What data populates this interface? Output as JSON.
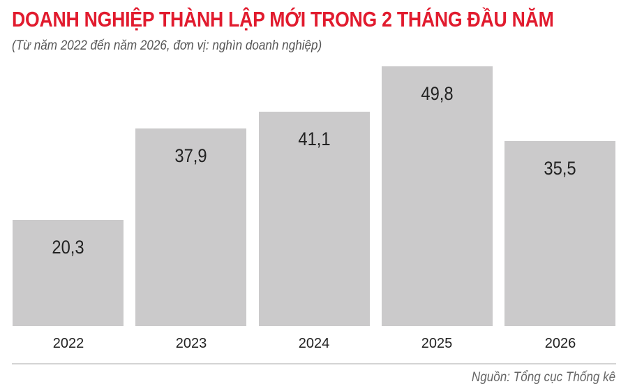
{
  "title": "DOANH NGHIỆP THÀNH LẬP MỚI TRONG 2 THÁNG ĐẦU NĂM",
  "subtitle": "(Từ năm 2022 đến năm 2026, đơn vị: nghìn doanh nghiệp)",
  "source": "Nguồn: Tổng cục Thống kê",
  "labels": [
    "20,3",
    "37,9",
    "41,1",
    "49,8",
    "35,5"
  ],
  "colors": {
    "title": "#e11b2e",
    "bar": "#cbcacb"
  },
  "chart_data": {
    "type": "bar",
    "title": "DOANH NGHIỆP THÀNH LẬP MỚI TRONG 2 THÁNG ĐẦU NĂM",
    "subtitle": "(Từ năm 2022 đến năm 2026, đơn vị: nghìn doanh nghiệp)",
    "categories": [
      "2022",
      "2023",
      "2024",
      "2025",
      "2026"
    ],
    "values": [
      20.3,
      37.9,
      41.1,
      49.8,
      35.5
    ],
    "xlabel": "",
    "ylabel": "nghìn doanh nghiệp",
    "grid": false,
    "legend": null,
    "annotations": [
      "Nguồn: Tổng cục Thống kê"
    ]
  }
}
